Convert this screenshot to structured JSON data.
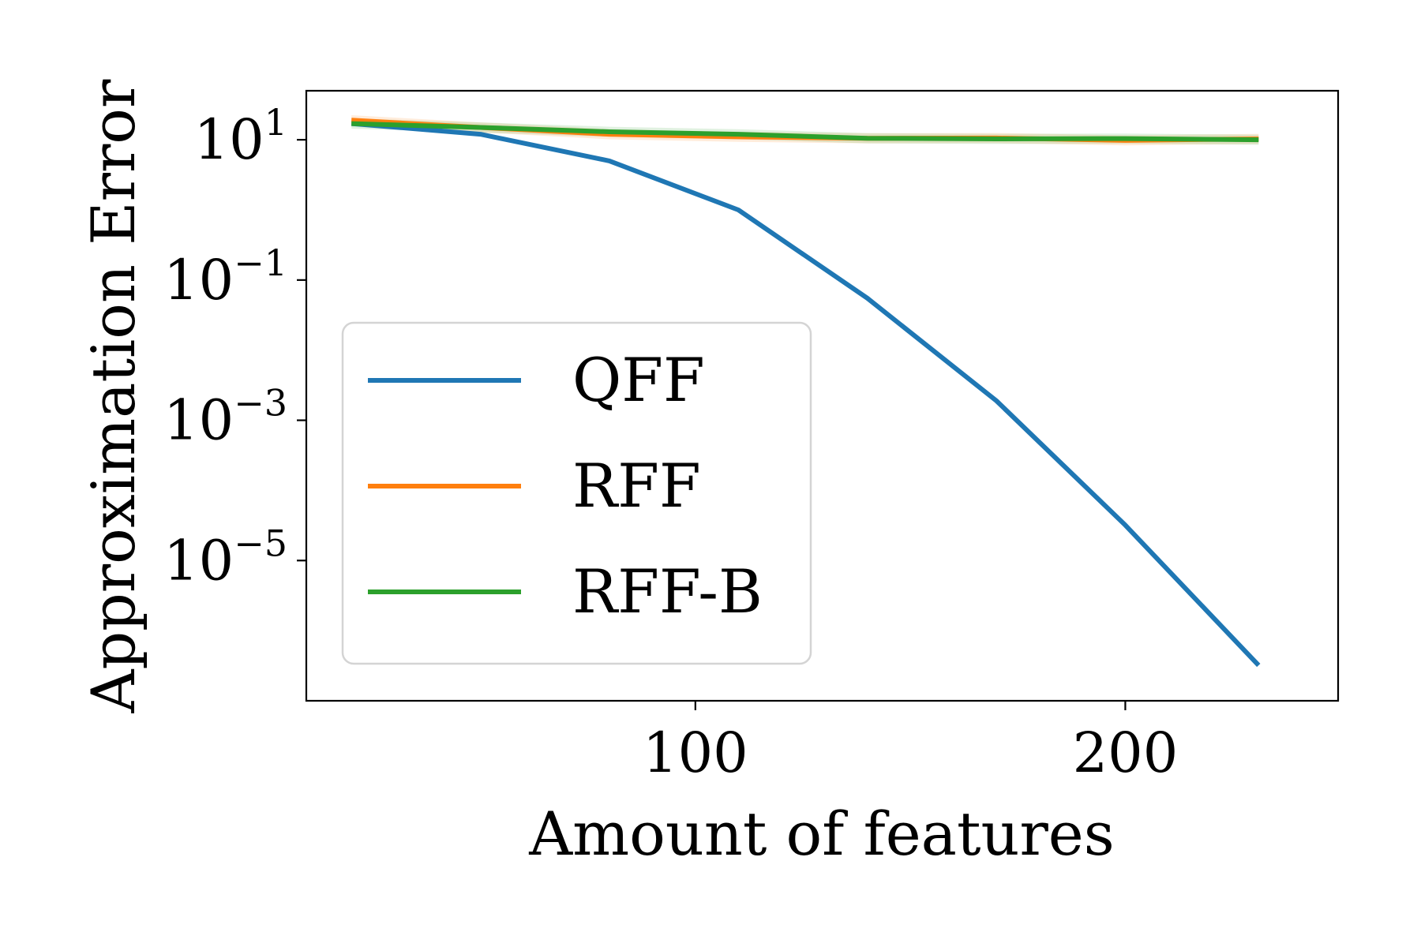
{
  "chart_data": {
    "type": "line",
    "xlabel": "Amount of features",
    "ylabel": "Approximation Error",
    "y_scale": "log",
    "x_ticks": [
      100,
      200
    ],
    "y_ticks": [
      {
        "value": 10,
        "base": "10",
        "exp": "1"
      },
      {
        "value": 0.1,
        "base": "10",
        "exp": "−1"
      },
      {
        "value": 0.001,
        "base": "10",
        "exp": "−3"
      },
      {
        "value": 1e-05,
        "base": "10",
        "exp": "−5"
      }
    ],
    "xlim": [
      9.5,
      249.5
    ],
    "ylim": [
      1e-07,
      50
    ],
    "legend_position": "center-left",
    "grid": false,
    "series": [
      {
        "name": "QFF",
        "color": "#1f77b4",
        "x": [
          20,
          50,
          80,
          110,
          140,
          170,
          200,
          231
        ],
        "y": [
          17,
          12,
          5.0,
          1.0,
          0.055,
          0.0019,
          3.2e-05,
          3.2e-07
        ]
      },
      {
        "name": "RFF",
        "color": "#ff7f0e",
        "x": [
          20,
          50,
          80,
          110,
          140,
          170,
          200,
          231
        ],
        "y": [
          19,
          15,
          12,
          11,
          10.5,
          10.6,
          9.8,
          10.3
        ]
      },
      {
        "name": "RFF-B",
        "color": "#2ca02c",
        "x": [
          20,
          50,
          80,
          110,
          140,
          170,
          200,
          231
        ],
        "y": [
          17,
          15,
          13,
          12,
          10.5,
          10.3,
          10.4,
          10.0
        ]
      }
    ]
  }
}
